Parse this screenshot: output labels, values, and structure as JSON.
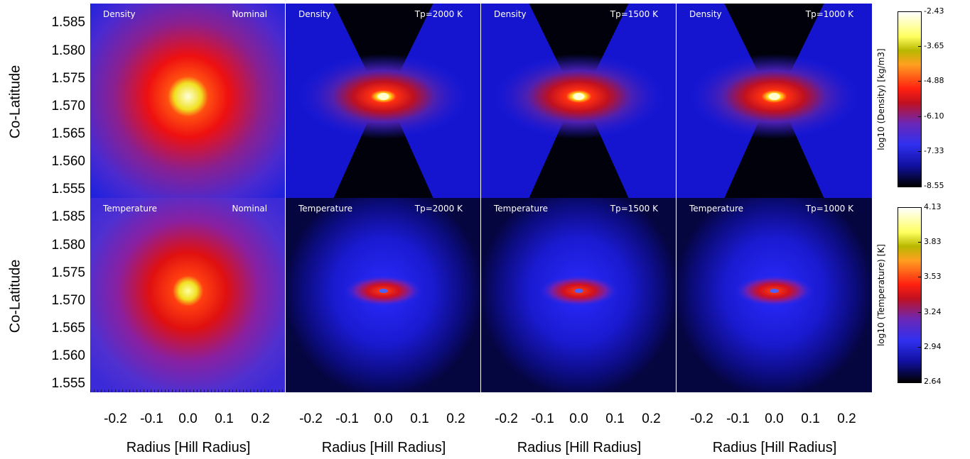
{
  "chart_data": {
    "type": "heatmap",
    "rows": [
      {
        "quantity": "Density",
        "colorbar_label": "log10 (Density) [kg/m3]",
        "colorbar_ticks": [
          "-2.43",
          "-3.65",
          "-4.88",
          "-6.10",
          "-7.33",
          "-8.55"
        ],
        "colorbar_range": [
          -8.55,
          -2.43
        ],
        "panels": [
          {
            "quantity_label": "Density",
            "case_label": "Nominal"
          },
          {
            "quantity_label": "Density",
            "case_label": "Tp=2000 K"
          },
          {
            "quantity_label": "Density",
            "case_label": "Tp=1500 K"
          },
          {
            "quantity_label": "Density",
            "case_label": "Tp=1000 K"
          }
        ]
      },
      {
        "quantity": "Temperature",
        "colorbar_label": "log10 (Temperature) [K]",
        "colorbar_ticks": [
          "4.13",
          "3.83",
          "3.53",
          "3.24",
          "2.94",
          "2.64"
        ],
        "colorbar_range": [
          2.64,
          4.13
        ],
        "panels": [
          {
            "quantity_label": "Temperature",
            "case_label": "Nominal"
          },
          {
            "quantity_label": "Temperature",
            "case_label": "Tp=2000 K"
          },
          {
            "quantity_label": "Temperature",
            "case_label": "Tp=1500 K"
          },
          {
            "quantity_label": "Temperature",
            "case_label": "Tp=1000 K"
          }
        ]
      }
    ],
    "xlabel": "Radius [Hill Radius]",
    "ylabel": "Co-Latitude",
    "xticks": [
      "-0.2",
      "-0.1",
      "0.0",
      "0.1",
      "0.2"
    ],
    "yticks": [
      "1.585",
      "1.580",
      "1.575",
      "1.570",
      "1.565",
      "1.560",
      "1.555"
    ],
    "xlim": [
      -0.25,
      0.25
    ],
    "ylim": [
      1.5535,
      1.5885
    ],
    "colormap": "black-blue-purple-red-orange-yellow-white"
  }
}
